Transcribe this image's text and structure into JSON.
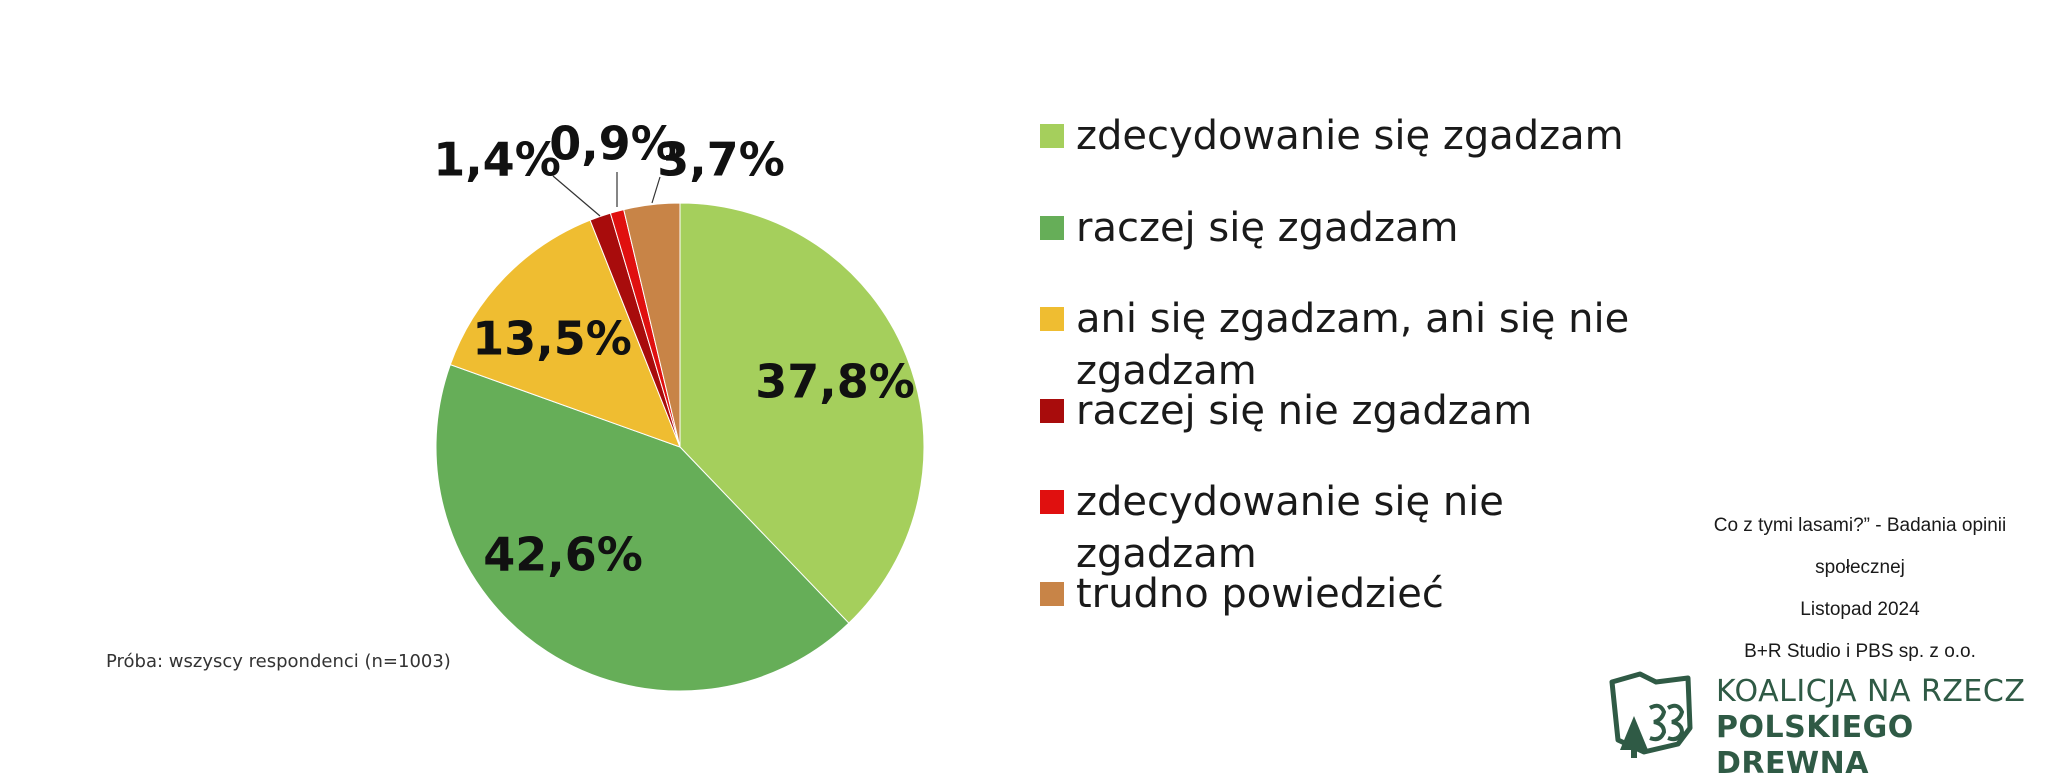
{
  "chart_data": {
    "type": "pie",
    "slices": [
      {
        "label": "zdecydowanie się zgadzam",
        "value": 37.8,
        "display": "37,8%",
        "color": "#a5cf5c"
      },
      {
        "label": "raczej się zgadzam",
        "value": 42.6,
        "display": "42,6%",
        "color": "#66ae58"
      },
      {
        "label": "ani się zgadzam, ani się nie zgadzam",
        "value": 13.5,
        "display": "13,5%",
        "color": "#efbd31"
      },
      {
        "label": "raczej się nie zgadzam",
        "value": 1.4,
        "display": "1,4%",
        "color": "#a80c0c"
      },
      {
        "label": "zdecydowanie się nie zgadzam",
        "value": 0.9,
        "display": "0,9%",
        "color": "#e0100f"
      },
      {
        "label": "trudno powiedzieć",
        "value": 3.7,
        "display": "3,7%",
        "color": "#c88447"
      }
    ],
    "legend_placement": "right"
  },
  "legend": {
    "items": [
      {
        "label": "zdecydowanie się zgadzam",
        "color": "#a5cf5c"
      },
      {
        "label": "raczej się zgadzam",
        "color": "#66ae58"
      },
      {
        "label": "ani się zgadzam, ani się nie zgadzam",
        "color": "#efbd31"
      },
      {
        "label": "raczej się nie zgadzam",
        "color": "#a80c0c"
      },
      {
        "label": "zdecydowanie się nie zgadzam",
        "color": "#e0100f"
      },
      {
        "label": "trudno powiedzieć",
        "color": "#c88447"
      }
    ]
  },
  "sample_note": "Próba: wszyscy respondenci (n=1003)",
  "source": {
    "line1": "Co z tymi lasami?”  - Badania opinii",
    "line2": "społecznej",
    "line3": "Listopad 2024",
    "line4": "B+R Studio i PBS sp. z o.o."
  },
  "logo": {
    "line1": "KOALICJA NA RZECZ",
    "line2": "POLSKIEGO DREWNA",
    "color": "#2f5a45",
    "icon": "forest-tree-logo-icon"
  }
}
